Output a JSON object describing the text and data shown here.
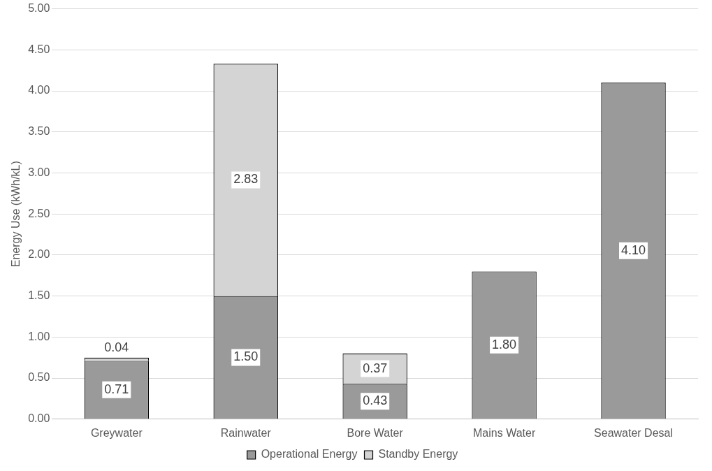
{
  "chart_data": {
    "type": "bar",
    "stacked": true,
    "ylabel": "Energy Use (kWh/kL)",
    "categories": [
      "Greywater",
      "Rainwater",
      "Bore Water",
      "Mains Water",
      "Seawater Desal"
    ],
    "series": [
      {
        "name": "Operational Energy",
        "color": "#9a9a9a",
        "values": [
          0.71,
          1.5,
          0.43,
          1.8,
          4.1
        ],
        "value_labels": [
          "0.71",
          "1.50",
          "0.43",
          "1.80",
          "4.10"
        ]
      },
      {
        "name": "Standby Energy",
        "color": "#d4d4d4",
        "values": [
          0.04,
          2.83,
          0.37,
          null,
          null
        ],
        "value_labels": [
          "0.04",
          "2.83",
          "0.37",
          null,
          null
        ]
      }
    ],
    "ylim": [
      0,
      5
    ],
    "yticks": [
      {
        "value": 0,
        "label": "0.00"
      },
      {
        "value": 0.5,
        "label": "0.50"
      },
      {
        "value": 1,
        "label": "1.00"
      },
      {
        "value": 1.5,
        "label": "1.50"
      },
      {
        "value": 2,
        "label": "2.00"
      },
      {
        "value": 2.5,
        "label": "2.50"
      },
      {
        "value": 3,
        "label": "3.00"
      },
      {
        "value": 3.5,
        "label": "3.50"
      },
      {
        "value": 4,
        "label": "4.00"
      },
      {
        "value": 4.5,
        "label": "4.50"
      },
      {
        "value": 5,
        "label": "5.00"
      }
    ],
    "grid": "y",
    "legend": "bottom"
  }
}
